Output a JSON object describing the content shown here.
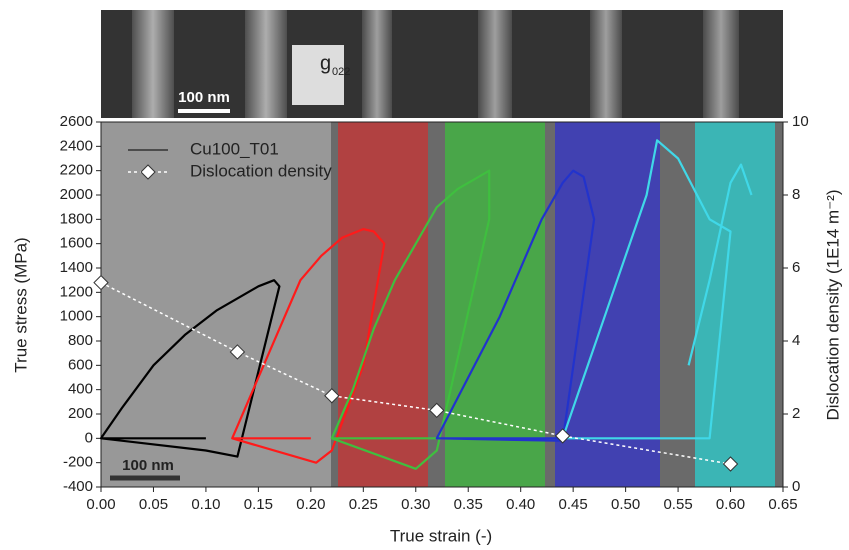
{
  "chart_data": {
    "type": "line",
    "xlabel": "True strain (-)",
    "ylabel": "True stress (MPa)",
    "y2label": "Dislocation density (1E14 m⁻²)",
    "scale_bar_top": "100 nm",
    "scale_bar_bottom": "100 nm",
    "diffraction_label": "g",
    "diffraction_index": "022",
    "xlim": [
      0,
      0.65
    ],
    "xticks": [
      {
        "value": 0,
        "label": "0.00"
      },
      0.05,
      {
        "value": 0.1,
        "label": "0.10"
      },
      0.15,
      {
        "value": 0.2,
        "label": "0.20"
      },
      0.25,
      {
        "value": 0.3,
        "label": "0.30"
      },
      0.35,
      {
        "value": 0.4,
        "label": "0.40"
      },
      0.45,
      {
        "value": 0.5,
        "label": "0.50"
      },
      0.55,
      {
        "value": 0.6,
        "label": "0.60"
      },
      0.65
    ],
    "ylim": [
      -400,
      2600
    ],
    "yticks": [
      -400,
      -200,
      0,
      200,
      400,
      600,
      800,
      1000,
      1200,
      1400,
      1600,
      1800,
      2000,
      2200,
      2400,
      2600
    ],
    "y2lim": [
      0,
      10
    ],
    "y2ticks": [
      0,
      2,
      4,
      6,
      8,
      10
    ],
    "legend": "upper left",
    "series": [
      {
        "name": "Cu100_T01",
        "color": "#000000",
        "segments": [
          {
            "color": "#000000",
            "x": [
              0,
              0.02,
              0.05,
              0.08,
              0.11,
              0.13,
              0.15,
              0.165,
              0.17,
              0.13,
              0.1,
              0,
              0.0,
              0.1
            ],
            "values": [
              0,
              250,
              600,
              850,
              1050,
              1150,
              1250,
              1300,
              1250,
              -150,
              -100,
              0,
              0,
              0
            ]
          },
          {
            "color": "#ff1a1a",
            "x": [
              0.125,
              0.15,
              0.17,
              0.19,
              0.21,
              0.23,
              0.25,
              0.26,
              0.27,
              0.25,
              0.22,
              0.205,
              0.125,
              0.2
            ],
            "values": [
              0,
              500,
              900,
              1300,
              1500,
              1650,
              1720,
              1700,
              1600,
              600,
              -100,
              -200,
              0,
              0
            ]
          },
          {
            "color": "#3fbf3f",
            "x": [
              0.22,
              0.24,
              0.26,
              0.28,
              0.3,
              0.32,
              0.34,
              0.36,
              0.37,
              0.37,
              0.32,
              0.3,
              0.22,
              0.32
            ],
            "values": [
              0,
              400,
              900,
              1300,
              1600,
              1900,
              2050,
              2150,
              2200,
              1800,
              -100,
              -250,
              0,
              0
            ]
          },
          {
            "color": "#2233cc",
            "x": [
              0.32,
              0.35,
              0.38,
              0.4,
              0.42,
              0.44,
              0.45,
              0.46,
              0.47,
              0.44,
              0.32,
              0.44
            ],
            "values": [
              0,
              500,
              1000,
              1400,
              1800,
              2100,
              2200,
              2150,
              1800,
              -20,
              0,
              0
            ]
          },
          {
            "color": "#40d8e8",
            "x": [
              0.44,
              0.46,
              0.48,
              0.5,
              0.52,
              0.53,
              0.55,
              0.58,
              0.6,
              0.58,
              0.44,
              0.58
            ],
            "values": [
              0,
              500,
              1000,
              1500,
              2000,
              2450,
              2300,
              1800,
              1700,
              0,
              0,
              0
            ]
          },
          {
            "color": "#40d8e8",
            "x": [
              0.56,
              0.58,
              0.6,
              0.61,
              0.62
            ],
            "values": [
              600,
              1300,
              2100,
              2250,
              2000
            ]
          }
        ]
      },
      {
        "name": "Dislocation density",
        "color": "#ffffff",
        "axis": "y2",
        "x": [
          0,
          0.13,
          0.22,
          0.32,
          0.44,
          0.6
        ],
        "values": [
          5.6,
          3.7,
          2.5,
          2.1,
          1.4,
          0.63
        ]
      }
    ]
  }
}
